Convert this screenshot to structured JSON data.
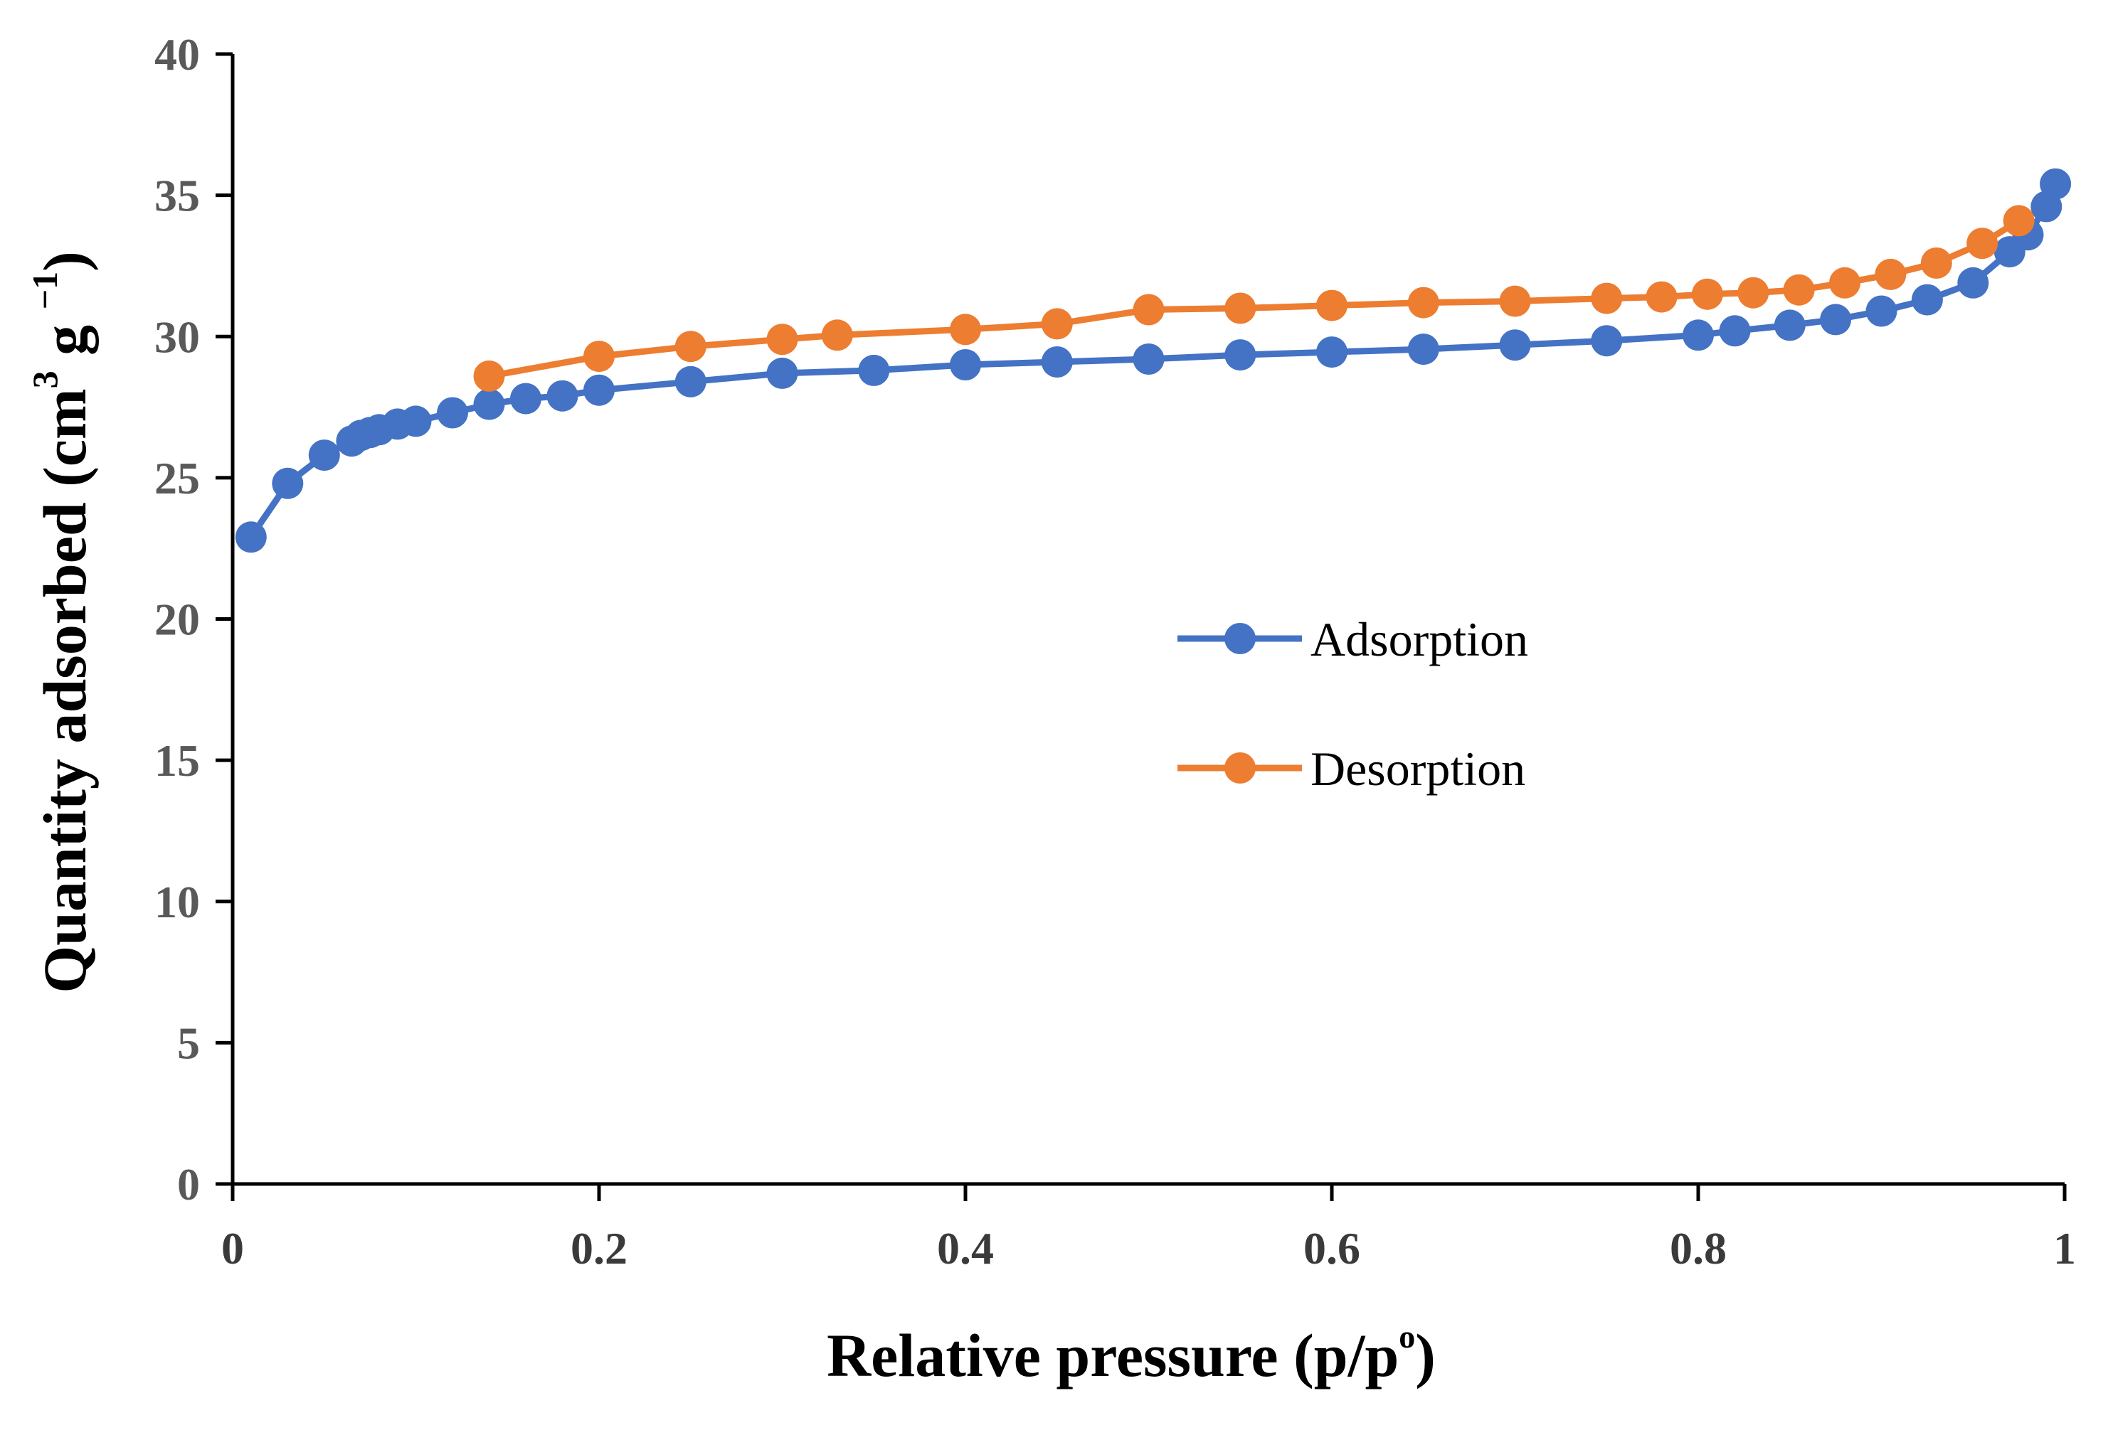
{
  "colors": {
    "adsorption": "#4472C4",
    "desorption": "#ED7D31",
    "axis": "#000000"
  },
  "chart_data": {
    "type": "line",
    "title": "",
    "xlabel": "Relative pressure (p/p",
    "xlabel_sup": "o",
    "xlabel_close": ")",
    "ylabel": "Quantity adsorbed (cm",
    "ylabel_sup1": "3",
    "ylabel_mid": " g ",
    "ylabel_sup2": "−1",
    "ylabel_close": ")",
    "xlim": [
      0,
      1
    ],
    "ylim": [
      0,
      40
    ],
    "xticks": [
      0,
      0.2,
      0.4,
      0.6,
      0.8,
      1
    ],
    "xtick_labels": [
      "0",
      "0.2",
      "0.4",
      "0.6",
      "0.8",
      "1"
    ],
    "yticks": [
      0,
      5,
      10,
      15,
      20,
      25,
      30,
      35,
      40
    ],
    "ytick_labels": [
      "0",
      "5",
      "10",
      "15",
      "20",
      "25",
      "30",
      "35",
      "40"
    ],
    "grid": false,
    "legend_position": "center-right",
    "series": [
      {
        "name": "Adsorption",
        "x": [
          0.01,
          0.03,
          0.05,
          0.065,
          0.07,
          0.075,
          0.08,
          0.09,
          0.1,
          0.12,
          0.14,
          0.16,
          0.18,
          0.2,
          0.25,
          0.3,
          0.35,
          0.4,
          0.45,
          0.5,
          0.55,
          0.6,
          0.65,
          0.7,
          0.75,
          0.8,
          0.82,
          0.85,
          0.875,
          0.9,
          0.925,
          0.95,
          0.97,
          0.98,
          0.99,
          0.995
        ],
        "y": [
          22.9,
          24.8,
          25.8,
          26.3,
          26.5,
          26.6,
          26.7,
          26.9,
          27.0,
          27.3,
          27.6,
          27.8,
          27.9,
          28.1,
          28.4,
          28.7,
          28.8,
          29.0,
          29.1,
          29.2,
          29.35,
          29.45,
          29.55,
          29.7,
          29.85,
          30.05,
          30.2,
          30.4,
          30.6,
          30.9,
          31.3,
          31.9,
          33.0,
          33.6,
          34.6,
          35.4
        ]
      },
      {
        "name": "Desorption",
        "x": [
          0.14,
          0.2,
          0.25,
          0.3,
          0.33,
          0.4,
          0.45,
          0.5,
          0.55,
          0.6,
          0.65,
          0.7,
          0.75,
          0.78,
          0.805,
          0.83,
          0.855,
          0.88,
          0.905,
          0.93,
          0.955,
          0.975
        ],
        "y": [
          28.6,
          29.3,
          29.65,
          29.9,
          30.05,
          30.25,
          30.45,
          30.95,
          31.0,
          31.1,
          31.2,
          31.25,
          31.35,
          31.4,
          31.5,
          31.55,
          31.65,
          31.9,
          32.2,
          32.6,
          33.3,
          34.1
        ]
      }
    ]
  }
}
